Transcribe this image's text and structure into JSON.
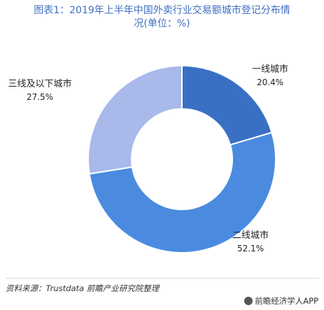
{
  "chart_data": {
    "type": "pie",
    "title": [
      "图表1：2019年上半年中国外卖行业交易额城市登记分布情",
      "况(单位：%)"
    ],
    "categories": [
      "一线城市",
      "二线城市",
      "三线及以下城市"
    ],
    "values": [
      20.4,
      52.1,
      27.5
    ],
    "value_labels": [
      "20.4%",
      "52.1%",
      "27.5%"
    ],
    "colors": [
      "#3a70c4",
      "#4a8be0",
      "#a8b9ea"
    ],
    "donut": true,
    "legend": "none"
  },
  "footer": {
    "source": "资料来源：Trustdata 前瞻产业研究院整理",
    "brand": "前瞻经济学人APP"
  }
}
